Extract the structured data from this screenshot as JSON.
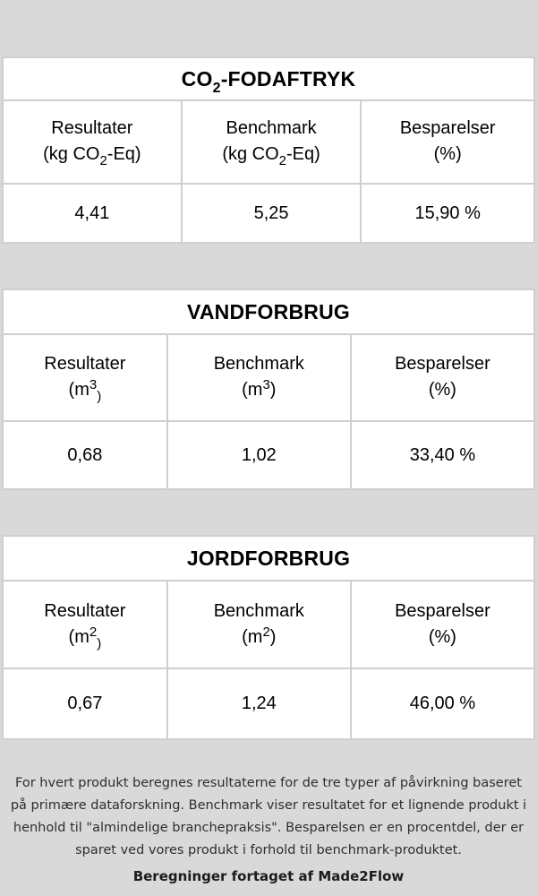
{
  "colors": {
    "page_background": "#d9d9d9",
    "card_background": "#ffffff",
    "border": "#cfcfcf",
    "table_text": "#000000",
    "footer_text": "#2e2e2e"
  },
  "tables": [
    {
      "title": {
        "pre": "CO",
        "sub": "2",
        "post": "-FODAFTRYK"
      },
      "columns": [
        {
          "name": "Resultater",
          "unit": {
            "pre": "(kg CO",
            "sup": "",
            "sub": "2",
            "post": "-Eq)"
          }
        },
        {
          "name": "Benchmark",
          "unit": {
            "pre": "(kg CO",
            "sup": "",
            "sub": "2",
            "post": "-Eq)"
          }
        },
        {
          "name": "Besparelser",
          "unit": {
            "pre": "(%)",
            "sup": "",
            "sub": "",
            "post": ""
          }
        }
      ],
      "values": [
        "4,41",
        "5,25",
        "15,90 %"
      ]
    },
    {
      "title": {
        "pre": "VANDFORBRUG",
        "sub": "",
        "post": ""
      },
      "columns": [
        {
          "name": "Resultater",
          "unit": {
            "pre": "(m",
            "sup": "3",
            "sub": ")",
            "post": ""
          }
        },
        {
          "name": "Benchmark",
          "unit": {
            "pre": "(m",
            "sup": "3",
            "sub": "",
            "post": ")"
          }
        },
        {
          "name": "Besparelser",
          "unit": {
            "pre": "(%)",
            "sup": "",
            "sub": "",
            "post": ""
          }
        }
      ],
      "values": [
        "0,68",
        "1,02",
        "33,40 %"
      ]
    },
    {
      "title": {
        "pre": "JORDFORBRUG",
        "sub": "",
        "post": ""
      },
      "columns": [
        {
          "name": "Resultater",
          "unit": {
            "pre": "(m",
            "sup": "2",
            "sub": ")",
            "post": ""
          }
        },
        {
          "name": "Benchmark",
          "unit": {
            "pre": "(m",
            "sup": "2",
            "sub": "",
            "post": ")"
          }
        },
        {
          "name": "Besparelser",
          "unit": {
            "pre": "(%)",
            "sup": "",
            "sub": "",
            "post": ""
          }
        }
      ],
      "values": [
        "0,67",
        "1,24",
        "46,00 %"
      ]
    }
  ],
  "footer": {
    "lines": [
      "For hvert produkt beregnes resultaterne for de tre typer af påvirkning baseret",
      "på primære dataforskning. Benchmark viser resultatet for et lignende produkt i",
      "henhold til \"almindelige branchepraksis\". Besparelsen er en procentdel, der er",
      "sparet ved vores produkt i forhold til benchmark-produktet."
    ],
    "credit": "Beregninger fortaget af Made2Flow"
  }
}
